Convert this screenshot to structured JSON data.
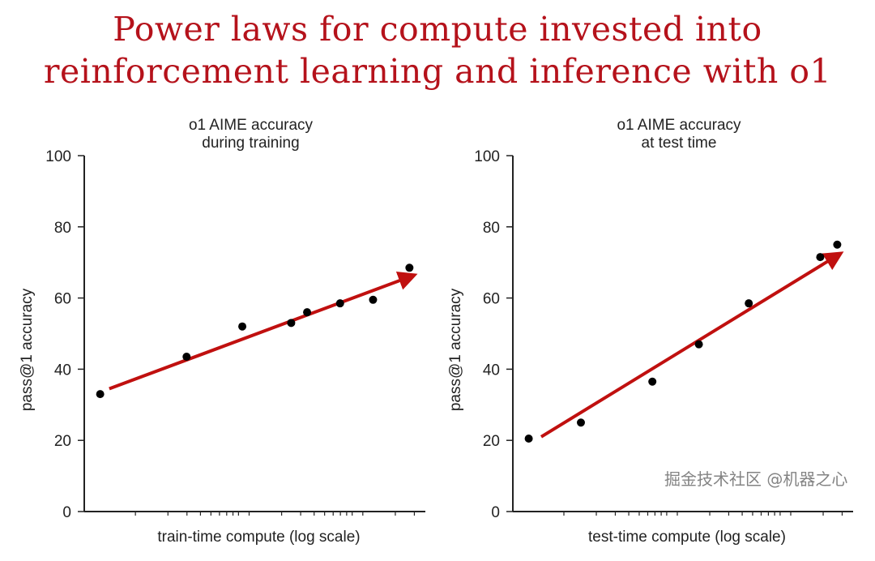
{
  "title_line1": "Power laws for compute invested into",
  "title_line2": "reinforcement learning and inference with o1",
  "watermark": "掘金技术社区 @机器之心",
  "colors": {
    "title": "#b5121b",
    "trend": "#c0100f",
    "points": "#000000"
  },
  "chart_data": [
    {
      "type": "scatter",
      "title": [
        "o1 AIME accuracy",
        "during training"
      ],
      "xlabel": "train-time compute (log scale)",
      "ylabel": "pass@1 accuracy",
      "ylim": [
        0,
        100
      ],
      "yticks": [
        0,
        20,
        40,
        60,
        80,
        100
      ],
      "xlim_log_decades": [
        0,
        3
      ],
      "x": [
        0.14,
        0.9,
        1.39,
        1.82,
        1.96,
        2.25,
        2.54,
        2.86
      ],
      "y": [
        33,
        43.5,
        52,
        53,
        56,
        58.5,
        59.5,
        68.5
      ],
      "trend_arrow": {
        "from": [
          0.22,
          34.5
        ],
        "to": [
          2.95,
          67
        ]
      }
    },
    {
      "type": "scatter",
      "title": [
        "o1 AIME accuracy",
        "at test time"
      ],
      "xlabel": "test-time compute (log scale)",
      "ylabel": "pass@1 accuracy",
      "ylim": [
        0,
        100
      ],
      "yticks": [
        0,
        20,
        40,
        60,
        80,
        100
      ],
      "xlim_log_decades": [
        0,
        3
      ],
      "x": [
        0.14,
        0.6,
        1.23,
        1.64,
        2.08,
        2.71,
        2.86
      ],
      "y": [
        20.5,
        25,
        36.5,
        47,
        58.5,
        71.5,
        75
      ],
      "trend_arrow": {
        "from": [
          0.25,
          21
        ],
        "to": [
          2.94,
          73.5
        ]
      }
    }
  ]
}
